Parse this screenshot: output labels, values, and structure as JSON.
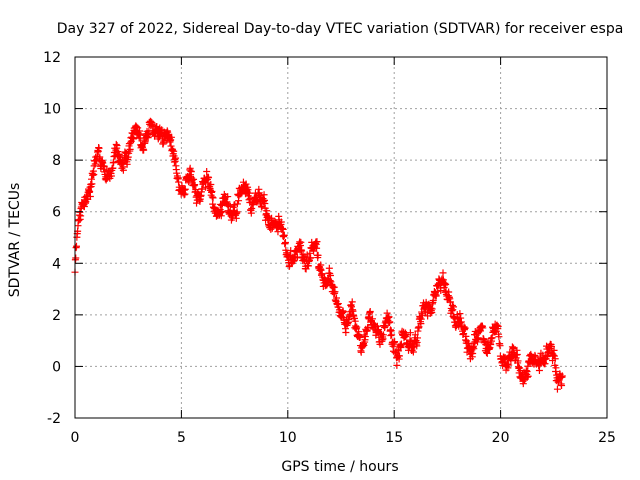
{
  "chart_data": {
    "type": "scatter",
    "title": "Day 327 of 2022, Sidereal Day-to-day VTEC variation (SDTVAR) for receiver espa",
    "xlabel": "GPS time / hours",
    "ylabel": "SDTVAR / TECUs",
    "xlim": [
      0,
      25
    ],
    "ylim": [
      -2,
      12
    ],
    "xticks": [
      0,
      5,
      10,
      15,
      20,
      25
    ],
    "yticks": [
      -2,
      0,
      2,
      4,
      6,
      8,
      10,
      12
    ],
    "grid": true,
    "marker": "+",
    "color": "#ff0000",
    "series": [
      {
        "name": "SDTVAR",
        "trend_x": [
          0,
          0.1,
          0.3,
          0.5,
          0.8,
          1.0,
          1.3,
          1.6,
          2.0,
          2.4,
          2.8,
          3.2,
          3.6,
          4.0,
          4.4,
          4.8,
          5.2,
          5.6,
          6.0,
          6.5,
          7.0,
          7.5,
          8.0,
          8.5,
          9.0,
          9.5,
          10.0,
          10.5,
          11.0,
          11.5,
          12.0,
          12.5,
          13.0,
          13.5,
          14.0,
          14.5,
          15.0,
          15.5,
          16.0,
          16.5,
          17.0,
          17.5,
          18.0,
          18.5,
          19.0,
          19.5,
          20.0,
          20.5,
          21.0,
          21.5,
          22.0,
          22.5,
          22.9
        ],
        "trend_y": [
          4.0,
          5.2,
          5.8,
          6.4,
          6.9,
          7.5,
          7.9,
          8.2,
          8.4,
          8.6,
          8.5,
          8.8,
          9.0,
          9.2,
          8.6,
          8.0,
          7.4,
          6.9,
          6.6,
          6.4,
          6.2,
          6.5,
          6.7,
          6.4,
          5.9,
          5.3,
          4.8,
          4.5,
          4.0,
          3.4,
          2.9,
          2.4,
          1.9,
          1.4,
          1.0,
          1.3,
          0.9,
          1.2,
          1.6,
          2.0,
          2.4,
          2.8,
          2.2,
          1.4,
          1.0,
          0.9,
          0.7,
          0.6,
          0.3,
          0.1,
          0.2,
          0.0,
          -0.5
        ],
        "spread": 0.7,
        "n_points": 1300
      }
    ]
  }
}
